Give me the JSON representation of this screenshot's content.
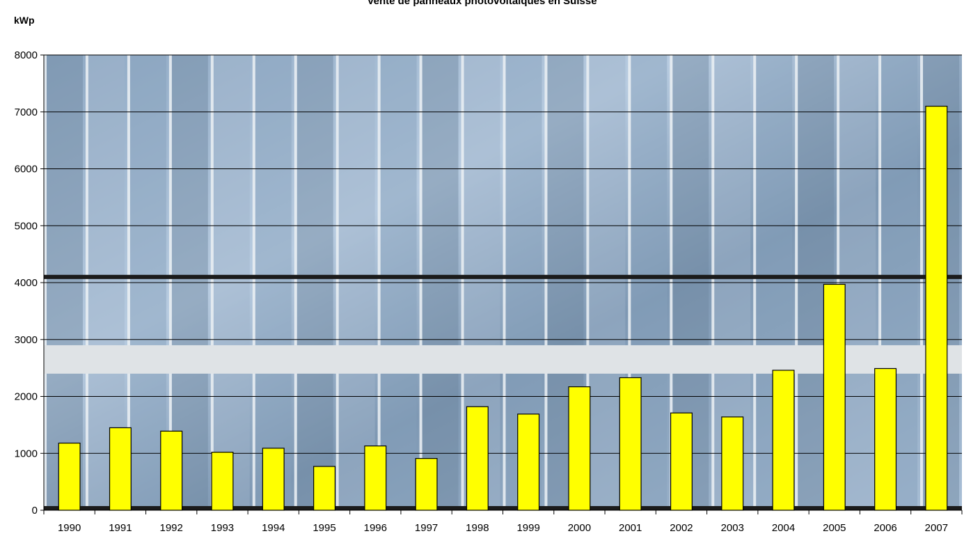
{
  "chart_data": {
    "type": "bar",
    "title": "Vente de panneaux photovoltaïques en Suisse",
    "ylabel": "kWp",
    "xlabel": "",
    "categories": [
      "1990",
      "1991",
      "1992",
      "1993",
      "1994",
      "1995",
      "1996",
      "1997",
      "1998",
      "1999",
      "2000",
      "2001",
      "2002",
      "2003",
      "2004",
      "2005",
      "2006",
      "2007"
    ],
    "values": [
      1180,
      1450,
      1390,
      1020,
      1090,
      770,
      1130,
      910,
      1820,
      1690,
      2170,
      2330,
      1710,
      1640,
      2460,
      3970,
      2490,
      7100
    ],
    "ylim": [
      0,
      8000
    ],
    "yticks": [
      0,
      1000,
      2000,
      3000,
      4000,
      5000,
      6000,
      7000,
      8000
    ],
    "grid": true,
    "legend": "none",
    "colors": {
      "bar_fill": "#ffff00",
      "bar_stroke": "#000000",
      "plot_background": "#9fb6cf",
      "gridline": "#000000"
    }
  }
}
